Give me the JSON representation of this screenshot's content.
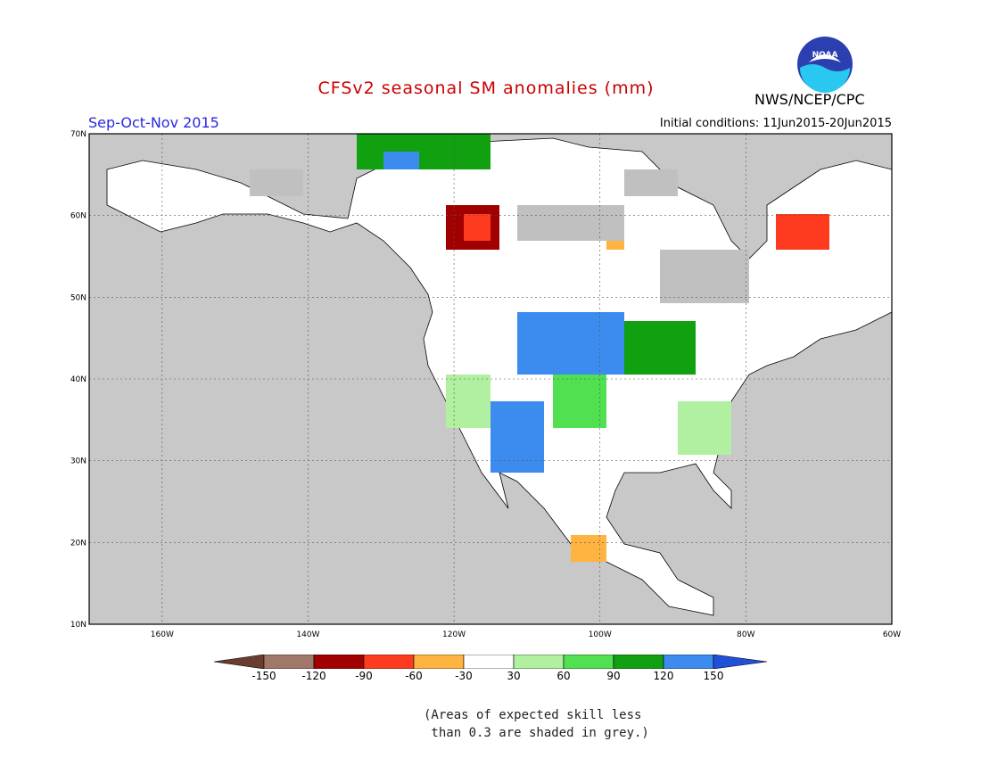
{
  "header": {
    "title": "CFSv2 seasonal SM anomalies (mm)",
    "season": "Sep-Oct-Nov 2015",
    "initial_conditions": "Initial conditions: 11Jun2015-20Jun2015",
    "organization": "NWS/NCEP/CPC",
    "logo_text": "NOAA"
  },
  "map": {
    "lat_labels": [
      "70N",
      "60N",
      "50N",
      "40N",
      "30N",
      "20N",
      "10N"
    ],
    "lon_labels": [
      "160W",
      "140W",
      "120W",
      "100W",
      "80W",
      "60W"
    ],
    "background_color": "#c8c8c8",
    "land_color": "#ffffff",
    "regions": [
      {
        "category": "120 to 150",
        "region": "central Great Plains / Nebraska-Kansas"
      },
      {
        "category": "120 to 150",
        "region": "southern Rockies / New Mexico / Sonora"
      },
      {
        "category": "60 to 120",
        "region": "Midwest and Ohio Valley"
      },
      {
        "category": "-150 to -90",
        "region": "Alberta / northern British Columbia"
      },
      {
        "category": "-120 to -60",
        "region": "Labrador / northern Quebec"
      },
      {
        "category": "grey (low skill)",
        "region": "Canadian interior, Hudson Bay area"
      }
    ]
  },
  "colorbar": {
    "colors": [
      "#6b3d2e",
      "#a0786a",
      "#a00000",
      "#ff3b1f",
      "#ffb340",
      "#ffffff",
      "#b0f0a0",
      "#50e050",
      "#10a010",
      "#3c8cf0",
      "#2050d8"
    ],
    "tick_labels": [
      "-150",
      "-120",
      "-90",
      "-60",
      "-30",
      "30",
      "60",
      "90",
      "120",
      "150"
    ]
  },
  "note": {
    "line1": "(Areas of expected skill less",
    "line2": " than 0.3 are shaded in grey.)"
  }
}
